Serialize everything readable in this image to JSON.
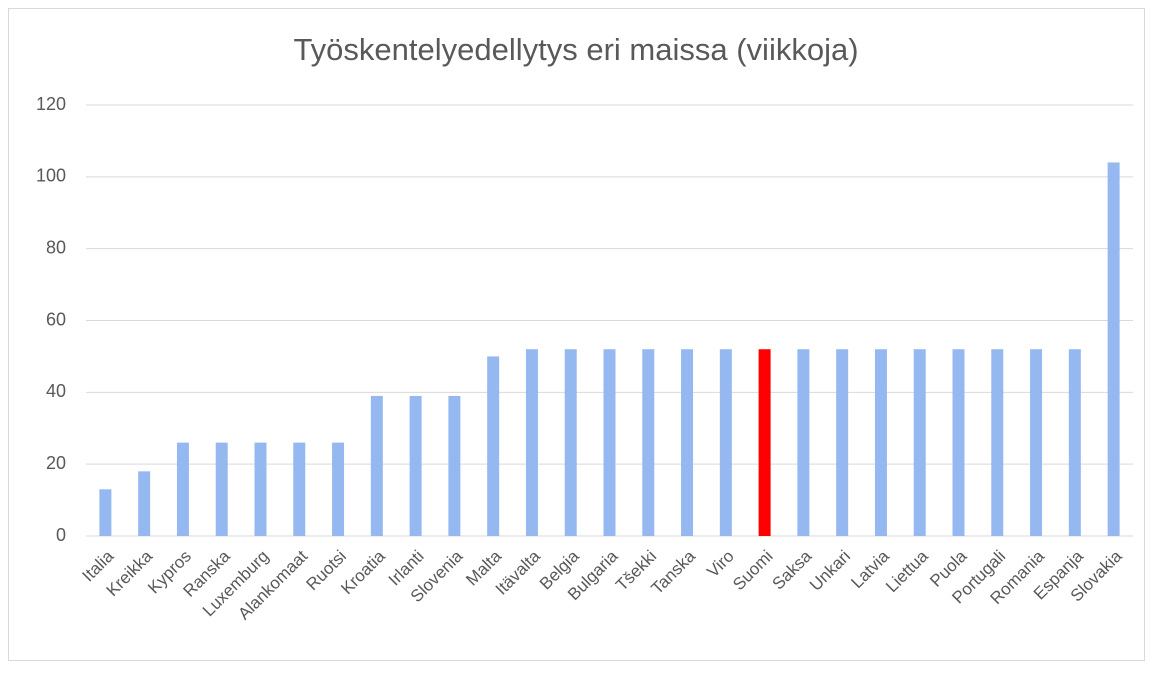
{
  "chart_data": {
    "type": "bar",
    "title": "Työskentelyedellytys eri maissa (viikkoja)",
    "categories": [
      "Italia",
      "Kreikka",
      "Kypros",
      "Ranska",
      "Luxemburg",
      "Alankomaat",
      "Ruotsi",
      "Kroatia",
      "Irlanti",
      "Slovenia",
      "Malta",
      "Itävalta",
      "Belgia",
      "Bulgaria",
      "Tšekki",
      "Tanska",
      "Viro",
      "Suomi",
      "Saksa",
      "Unkari",
      "Latvia",
      "Liettua",
      "Puola",
      "Portugali",
      "Romania",
      "Espanja",
      "Slovakia"
    ],
    "values": [
      13,
      18,
      26,
      26,
      26,
      26,
      26,
      39,
      39,
      39,
      50,
      52,
      52,
      52,
      52,
      52,
      52,
      52,
      52,
      52,
      52,
      52,
      52,
      52,
      52,
      52,
      104
    ],
    "colors": [
      "#95b8f0",
      "#95b8f0",
      "#95b8f0",
      "#95b8f0",
      "#95b8f0",
      "#95b8f0",
      "#95b8f0",
      "#95b8f0",
      "#95b8f0",
      "#95b8f0",
      "#95b8f0",
      "#95b8f0",
      "#95b8f0",
      "#95b8f0",
      "#95b8f0",
      "#95b8f0",
      "#95b8f0",
      "#ff0000",
      "#95b8f0",
      "#95b8f0",
      "#95b8f0",
      "#95b8f0",
      "#95b8f0",
      "#95b8f0",
      "#95b8f0",
      "#95b8f0",
      "#95b8f0"
    ],
    "ylim": [
      0,
      120
    ],
    "yticks": [
      0,
      20,
      40,
      60,
      80,
      100,
      120
    ],
    "grid": true
  }
}
